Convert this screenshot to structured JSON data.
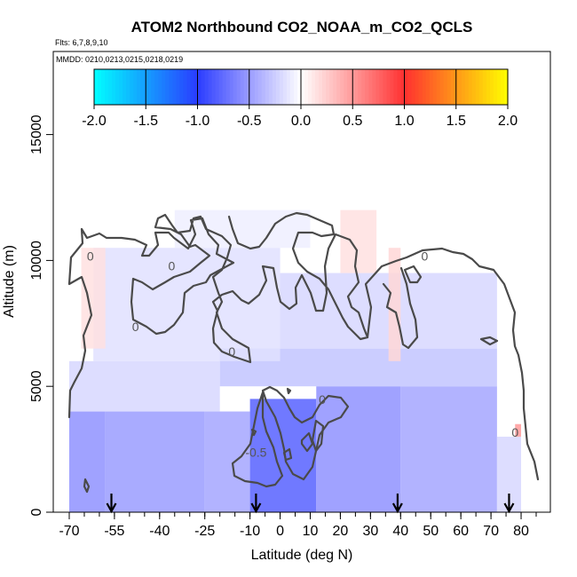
{
  "chart_data": {
    "type": "heatmap",
    "title": "ATOM2 Northbound CO2_NOAA_m_CO2_QCLS",
    "flights_label": "Flts: 6,7,8,9,10",
    "dates_label": "MMDD: 0210,0213,0215,0218,0219",
    "xlabel": "Latitude (deg N)",
    "ylabel": "Altitude (m)",
    "xlim": [
      -70,
      85
    ],
    "ylim": [
      0,
      18000
    ],
    "xticks": [
      -70,
      -55,
      -40,
      -25,
      -10,
      0,
      10,
      20,
      30,
      40,
      50,
      60,
      70,
      80
    ],
    "xtick_labels": [
      "-70",
      "-55",
      "-40",
      "-25",
      "-10",
      "0",
      "10",
      "20",
      "30",
      "40",
      "50",
      "60",
      "70",
      "80"
    ],
    "yticks": [
      0,
      5000,
      10000,
      15000
    ],
    "ytick_labels": [
      "0",
      "5000",
      "10000",
      "15000"
    ],
    "colorbar": {
      "range": [
        -2.0,
        2.0
      ],
      "ticks": [
        -2.0,
        -1.5,
        -1.0,
        -0.5,
        0.0,
        0.5,
        1.0,
        1.5,
        2.0
      ],
      "tick_labels": [
        "-2.0",
        "-1.5",
        "-1.0",
        "-0.5",
        "0.0",
        "0.5",
        "1.0",
        "1.5",
        "2.0"
      ],
      "stops": [
        {
          "value": -2.0,
          "color": "#00ffff"
        },
        {
          "value": -1.0,
          "color": "#2a3cff"
        },
        {
          "value": -0.5,
          "color": "#9a9cff"
        },
        {
          "value": 0.0,
          "color": "#ffffff"
        },
        {
          "value": 0.5,
          "color": "#ff9a9a"
        },
        {
          "value": 1.0,
          "color": "#ff3030"
        },
        {
          "value": 2.0,
          "color": "#ffff00"
        }
      ]
    },
    "profile_latitudes": [
      -56,
      -8,
      39,
      76
    ],
    "contour_labels": [
      {
        "text": "0",
        "lat": -63,
        "alt": 10000
      },
      {
        "text": "0",
        "lat": -36,
        "alt": 9600
      },
      {
        "text": "0",
        "lat": -48,
        "alt": 7200
      },
      {
        "text": "0",
        "lat": -16,
        "alt": 6200
      },
      {
        "text": "0",
        "lat": 14,
        "alt": 4300
      },
      {
        "text": "0",
        "lat": 48,
        "alt": 10000
      },
      {
        "text": "0",
        "lat": 78,
        "alt": 3000
      },
      {
        "text": "-0.5",
        "lat": -8,
        "alt": 2200
      }
    ],
    "field_regions": [
      {
        "lat": [
          -70,
          -58
        ],
        "alt": [
          0,
          4000
        ],
        "value": -0.55
      },
      {
        "lat": [
          -58,
          -25
        ],
        "alt": [
          0,
          4000
        ],
        "value": -0.5
      },
      {
        "lat": [
          -25,
          -10
        ],
        "alt": [
          0,
          4000
        ],
        "value": -0.45
      },
      {
        "lat": [
          -10,
          12
        ],
        "alt": [
          0,
          4500
        ],
        "value": -0.8
      },
      {
        "lat": [
          12,
          40
        ],
        "alt": [
          0,
          5000
        ],
        "value": -0.55
      },
      {
        "lat": [
          40,
          72
        ],
        "alt": [
          0,
          5000
        ],
        "value": -0.45
      },
      {
        "lat": [
          72,
          80
        ],
        "alt": [
          0,
          3000
        ],
        "value": -0.2
      },
      {
        "lat": [
          -70,
          -20
        ],
        "alt": [
          4000,
          6000
        ],
        "value": -0.2
      },
      {
        "lat": [
          -20,
          72
        ],
        "alt": [
          5000,
          6500
        ],
        "value": -0.3
      },
      {
        "lat": [
          -62,
          0
        ],
        "alt": [
          6000,
          10500
        ],
        "value": -0.15
      },
      {
        "lat": [
          0,
          72
        ],
        "alt": [
          6500,
          9500
        ],
        "value": -0.2
      },
      {
        "lat": [
          -35,
          10
        ],
        "alt": [
          10500,
          12000
        ],
        "value": -0.08
      },
      {
        "lat": [
          -66,
          -58
        ],
        "alt": [
          6500,
          10500
        ],
        "value": 0.15
      },
      {
        "lat": [
          20,
          32
        ],
        "alt": [
          9500,
          12000
        ],
        "value": 0.15
      },
      {
        "lat": [
          36,
          40
        ],
        "alt": [
          6000,
          10500
        ],
        "value": 0.2
      },
      {
        "lat": [
          78,
          80
        ],
        "alt": [
          3000,
          3500
        ],
        "value": 0.5
      }
    ]
  }
}
